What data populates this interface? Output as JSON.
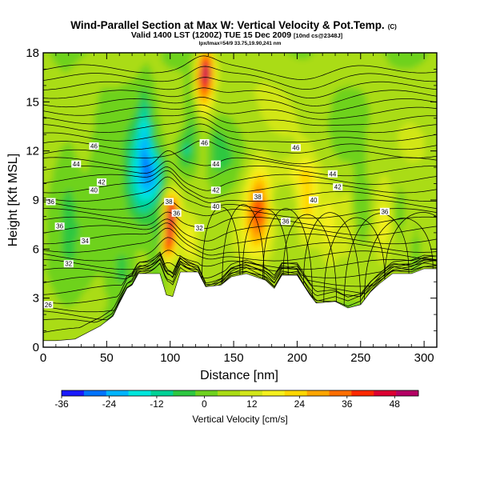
{
  "chart_data": {
    "type": "heatmap",
    "title": "Wind-Parallel Section at Max W: Vertical Velocity & Pot.Temp.",
    "title_mark": "(C)",
    "subtitle": "Valid 1400 LST (1200Z) TUE 15 Dec 2009",
    "subtitle_suffix": "[10nd cs@2348J]",
    "subsubtitle": "lpx/Imax=54/9 33.75,19.90,241 nm",
    "xlabel": "Distance [nm]",
    "ylabel": "Height [Kft MSL]",
    "xlim": [
      0,
      310
    ],
    "ylim": [
      0,
      18
    ],
    "xticks": [
      0,
      50,
      100,
      150,
      200,
      250,
      300
    ],
    "yticks": [
      0,
      3,
      6,
      9,
      12,
      15,
      18
    ],
    "colorbar": {
      "label": "Vertical Velocity [cm/s]",
      "range": [
        -36,
        54
      ],
      "ticks": [
        -36,
        -24,
        -12,
        0,
        12,
        24,
        36,
        48
      ],
      "colors": [
        "#1a1aff",
        "#0073ff",
        "#00b4ff",
        "#00e6dc",
        "#00d296",
        "#2dc841",
        "#6ed21e",
        "#aadc14",
        "#d2e619",
        "#f5f01e",
        "#ffd700",
        "#ffa500",
        "#ff6e00",
        "#ff2800",
        "#dc0032",
        "#b40064"
      ]
    },
    "theta_contours": [
      {
        "label": "26",
        "x": 4,
        "y": 2.6
      },
      {
        "label": "32",
        "x": 20,
        "y": 5.1
      },
      {
        "label": "34",
        "x": 33,
        "y": 6.5
      },
      {
        "label": "36",
        "x": 13,
        "y": 7.4
      },
      {
        "label": "36",
        "x": 6,
        "y": 8.9
      },
      {
        "label": "40",
        "x": 40,
        "y": 9.6
      },
      {
        "label": "42",
        "x": 46,
        "y": 10.1
      },
      {
        "label": "44",
        "x": 26,
        "y": 11.2
      },
      {
        "label": "46",
        "x": 40,
        "y": 12.3
      },
      {
        "label": "32",
        "x": 123,
        "y": 7.3
      },
      {
        "label": "36",
        "x": 105,
        "y": 8.2
      },
      {
        "label": "38",
        "x": 99,
        "y": 8.9
      },
      {
        "label": "40",
        "x": 136,
        "y": 8.6
      },
      {
        "label": "42",
        "x": 136,
        "y": 9.6
      },
      {
        "label": "44",
        "x": 136,
        "y": 11.2
      },
      {
        "label": "46",
        "x": 127,
        "y": 12.5
      },
      {
        "label": "38",
        "x": 169,
        "y": 9.2
      },
      {
        "label": "36",
        "x": 191,
        "y": 7.7
      },
      {
        "label": "40",
        "x": 213,
        "y": 9.0
      },
      {
        "label": "42",
        "x": 232,
        "y": 9.8
      },
      {
        "label": "44",
        "x": 228,
        "y": 10.6
      },
      {
        "label": "46",
        "x": 199,
        "y": 12.2
      },
      {
        "label": "36",
        "x": 269,
        "y": 8.3
      }
    ],
    "terrain": [
      [
        0,
        0.4
      ],
      [
        10,
        0.4
      ],
      [
        25,
        0.5
      ],
      [
        45,
        1.3
      ],
      [
        55,
        1.9
      ],
      [
        60,
        2.7
      ],
      [
        66,
        3.6
      ],
      [
        70,
        3.8
      ],
      [
        75,
        4.5
      ],
      [
        92,
        4.5
      ],
      [
        97,
        3.2
      ],
      [
        102,
        3.1
      ],
      [
        108,
        4.6
      ],
      [
        122,
        4.6
      ],
      [
        128,
        3.7
      ],
      [
        140,
        3.8
      ],
      [
        148,
        4.3
      ],
      [
        160,
        4.5
      ],
      [
        175,
        4.1
      ],
      [
        182,
        3.6
      ],
      [
        188,
        4.4
      ],
      [
        200,
        4.4
      ],
      [
        210,
        3.2
      ],
      [
        215,
        2.7
      ],
      [
        230,
        2.8
      ],
      [
        240,
        2.4
      ],
      [
        250,
        2.6
      ],
      [
        258,
        3.4
      ],
      [
        265,
        3.9
      ],
      [
        275,
        4.5
      ],
      [
        290,
        4.5
      ],
      [
        300,
        4.8
      ],
      [
        310,
        4.8
      ]
    ]
  }
}
